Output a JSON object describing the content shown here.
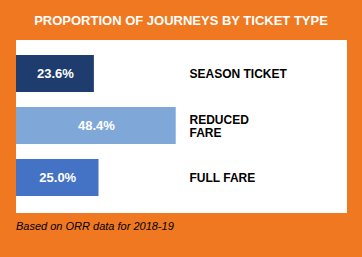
{
  "chart_data": {
    "type": "bar",
    "title": "PROPORTION OF JOURNEYS BY TICKET TYPE",
    "orientation": "horizontal",
    "categories": [
      "FULL FARE",
      "REDUCED\nFARE",
      "SEASON TICKET"
    ],
    "values": [
      25.0,
      48.4,
      23.6
    ],
    "value_labels": [
      "25.0%",
      "48.4%",
      "23.6%"
    ],
    "colors": [
      "#4472C4",
      "#7FA8D9",
      "#1F3C6E"
    ],
    "xlim": [
      0,
      100
    ],
    "data_labels": true,
    "tick_labels": false,
    "grid": false,
    "caption": "Based on ORR data for 2018-19"
  }
}
